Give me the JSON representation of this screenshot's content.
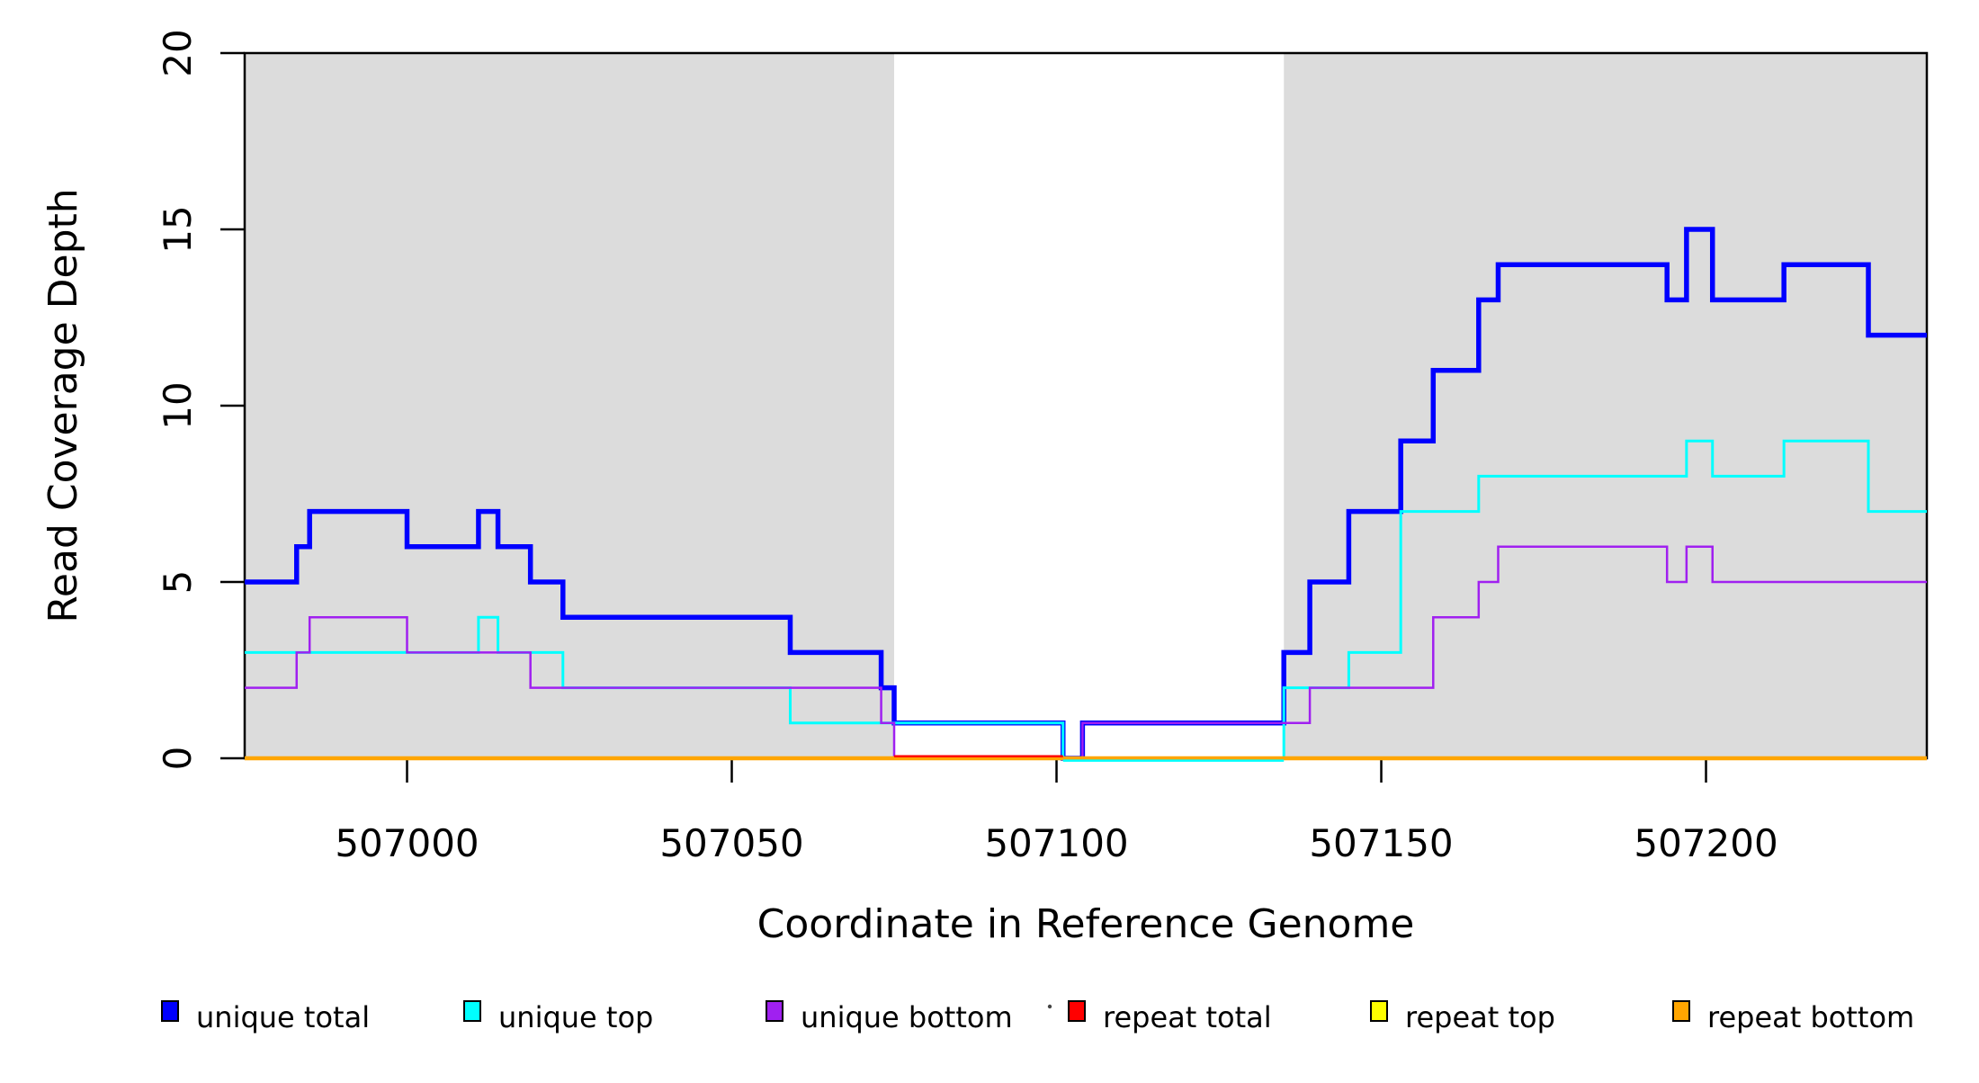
{
  "chart_data": {
    "type": "line",
    "subtype": "step-coverage-plot",
    "title": "",
    "xlabel": "Coordinate in Reference Genome",
    "ylabel": "Read Coverage Depth",
    "xlim": [
      506975,
      507234
    ],
    "ylim": [
      0,
      20
    ],
    "x_ticks": [
      "507000",
      "507050",
      "507100",
      "507150",
      "507200"
    ],
    "x_tick_values": [
      507000,
      507050,
      507100,
      507150,
      507200
    ],
    "y_ticks": [
      "0",
      "5",
      "10",
      "15",
      "20"
    ],
    "y_tick_values": [
      0,
      5,
      10,
      15,
      20
    ],
    "grid": false,
    "legend_position": "bottom",
    "background_color": "#FFFFFF",
    "shaded_region_color": "#DCDCDC",
    "shaded_regions": [
      {
        "x0": 506975,
        "x1": 507075
      },
      {
        "x0": 507135,
        "x1": 507234
      }
    ],
    "series": [
      {
        "name": "unique total",
        "color": "#0000FF",
        "width": 5.5,
        "steps": [
          [
            506975,
            5
          ],
          [
            506983,
            6
          ],
          [
            506985,
            7
          ],
          [
            507000,
            6
          ],
          [
            507011,
            7
          ],
          [
            507014,
            6
          ],
          [
            507019,
            5
          ],
          [
            507024,
            4
          ],
          [
            507059,
            3
          ],
          [
            507073,
            2
          ],
          [
            507075,
            1
          ],
          [
            507101,
            0
          ],
          [
            507104,
            1
          ],
          [
            507135,
            3
          ],
          [
            507139,
            5
          ],
          [
            507145,
            7
          ],
          [
            507153,
            9
          ],
          [
            507158,
            11
          ],
          [
            507165,
            13
          ],
          [
            507168,
            14
          ],
          [
            507194,
            13
          ],
          [
            507197,
            15
          ],
          [
            507201,
            13
          ],
          [
            507212,
            14
          ],
          [
            507225,
            12
          ]
        ]
      },
      {
        "name": "unique top",
        "color": "#00FFFF",
        "width": 3,
        "steps": [
          [
            506975,
            3
          ],
          [
            507011,
            4
          ],
          [
            507014,
            3
          ],
          [
            507024,
            2
          ],
          [
            507059,
            1
          ],
          [
            507101,
            0
          ],
          [
            507135,
            2
          ],
          [
            507145,
            3
          ],
          [
            507153,
            7
          ],
          [
            507165,
            8
          ],
          [
            507197,
            9
          ],
          [
            507201,
            8
          ],
          [
            507212,
            9
          ],
          [
            507225,
            7
          ]
        ]
      },
      {
        "name": "unique bottom",
        "color": "#A020F0",
        "width": 2.5,
        "steps": [
          [
            506975,
            2
          ],
          [
            506983,
            3
          ],
          [
            506985,
            4
          ],
          [
            507000,
            3
          ],
          [
            507019,
            2
          ],
          [
            507073,
            1
          ],
          [
            507075,
            0
          ],
          [
            507104,
            1
          ],
          [
            507139,
            2
          ],
          [
            507158,
            4
          ],
          [
            507165,
            5
          ],
          [
            507168,
            6
          ],
          [
            507194,
            5
          ],
          [
            507197,
            6
          ],
          [
            507201,
            5
          ]
        ]
      },
      {
        "name": "repeat total",
        "color": "#FF0000",
        "width": 3,
        "steps": [
          [
            506975,
            0
          ]
        ]
      },
      {
        "name": "repeat top",
        "color": "#FFFF00",
        "width": 3,
        "steps": [
          [
            506975,
            0
          ]
        ]
      },
      {
        "name": "repeat bottom",
        "color": "#FFA500",
        "width": 4.5,
        "steps": [
          [
            506975,
            0
          ]
        ]
      }
    ],
    "zero_line_overlays": [
      {
        "color": "#FF0000",
        "x0": 507075,
        "x1": 507101,
        "dy": -2.2,
        "width": 2.5
      },
      {
        "color": "#00FFFF",
        "x0": 507101,
        "x1": 507135,
        "dy": 2.6,
        "width": 2.5
      }
    ],
    "legend": [
      {
        "label": "unique total",
        "color": "#0000FF"
      },
      {
        "label": "unique top",
        "color": "#00FFFF"
      },
      {
        "label": "unique bottom",
        "color": "#A020F0"
      },
      {
        "label": "repeat total",
        "color": "#FF0000"
      },
      {
        "label": "repeat top",
        "color": "#FFFF00"
      },
      {
        "label": "repeat bottom",
        "color": "#FFA500"
      }
    ]
  }
}
